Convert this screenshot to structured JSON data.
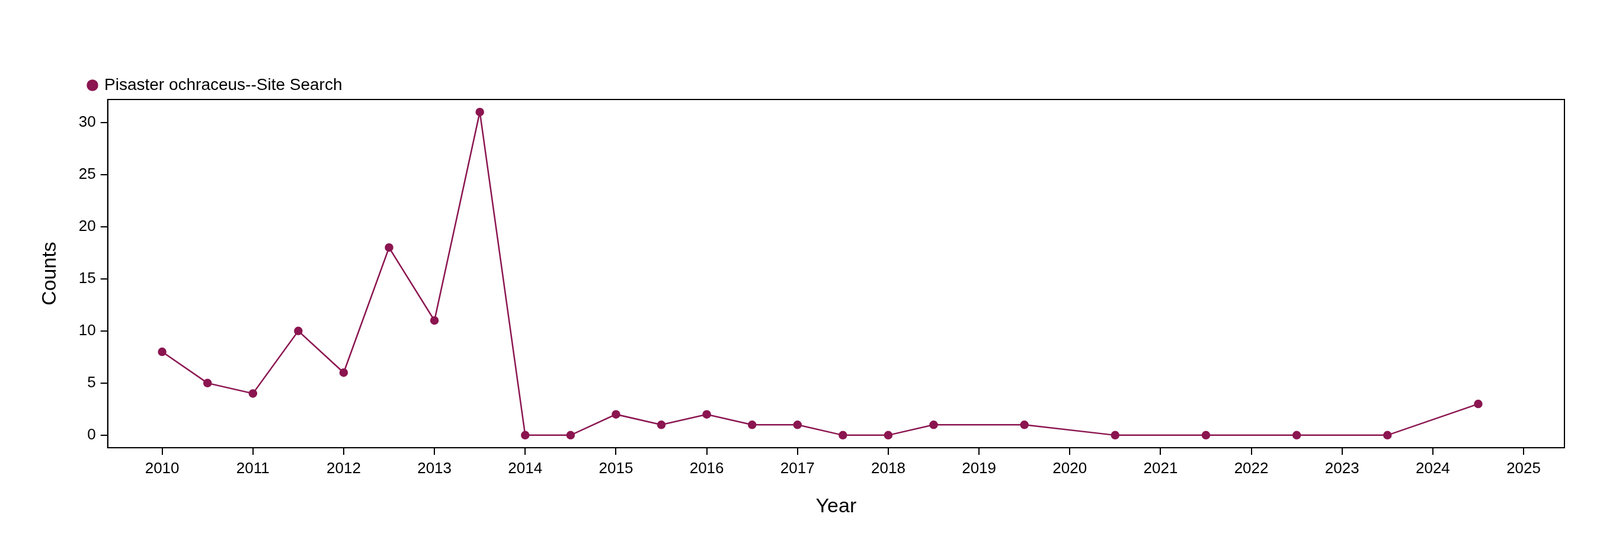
{
  "chart_data": {
    "type": "line",
    "x_label": "Year",
    "y_label": "Counts",
    "x": [
      2010,
      2010.5,
      2011,
      2011.5,
      2012,
      2012.5,
      2013,
      2013.5,
      2014,
      2014.5,
      2015,
      2015.5,
      2016,
      2016.5,
      2017,
      2017.5,
      2018,
      2018.5,
      2019.5,
      2020.5,
      2021.5,
      2022.5,
      2023.5,
      2024.5
    ],
    "series": [
      {
        "name": "Pisaster ochraceus--Site Search",
        "color": "#8b1550",
        "marker": "circle",
        "line_style": "solid",
        "values": [
          8,
          5,
          4,
          10,
          6,
          18,
          11,
          31,
          0,
          0,
          2,
          1,
          2,
          1,
          1,
          0,
          0,
          1,
          1,
          0,
          0,
          0,
          0,
          3
        ]
      }
    ],
    "xlim": [
      2009.4,
      2025.45
    ],
    "xticks": [
      2010,
      2011,
      2012,
      2013,
      2014,
      2015,
      2016,
      2017,
      2018,
      2019,
      2020,
      2021,
      2022,
      2023,
      2024,
      2025
    ],
    "ylim": [
      -1.2,
      32.2
    ],
    "yticks": [
      0,
      5,
      10,
      15,
      20,
      25,
      30
    ],
    "grid": false,
    "legend": "top-left"
  }
}
